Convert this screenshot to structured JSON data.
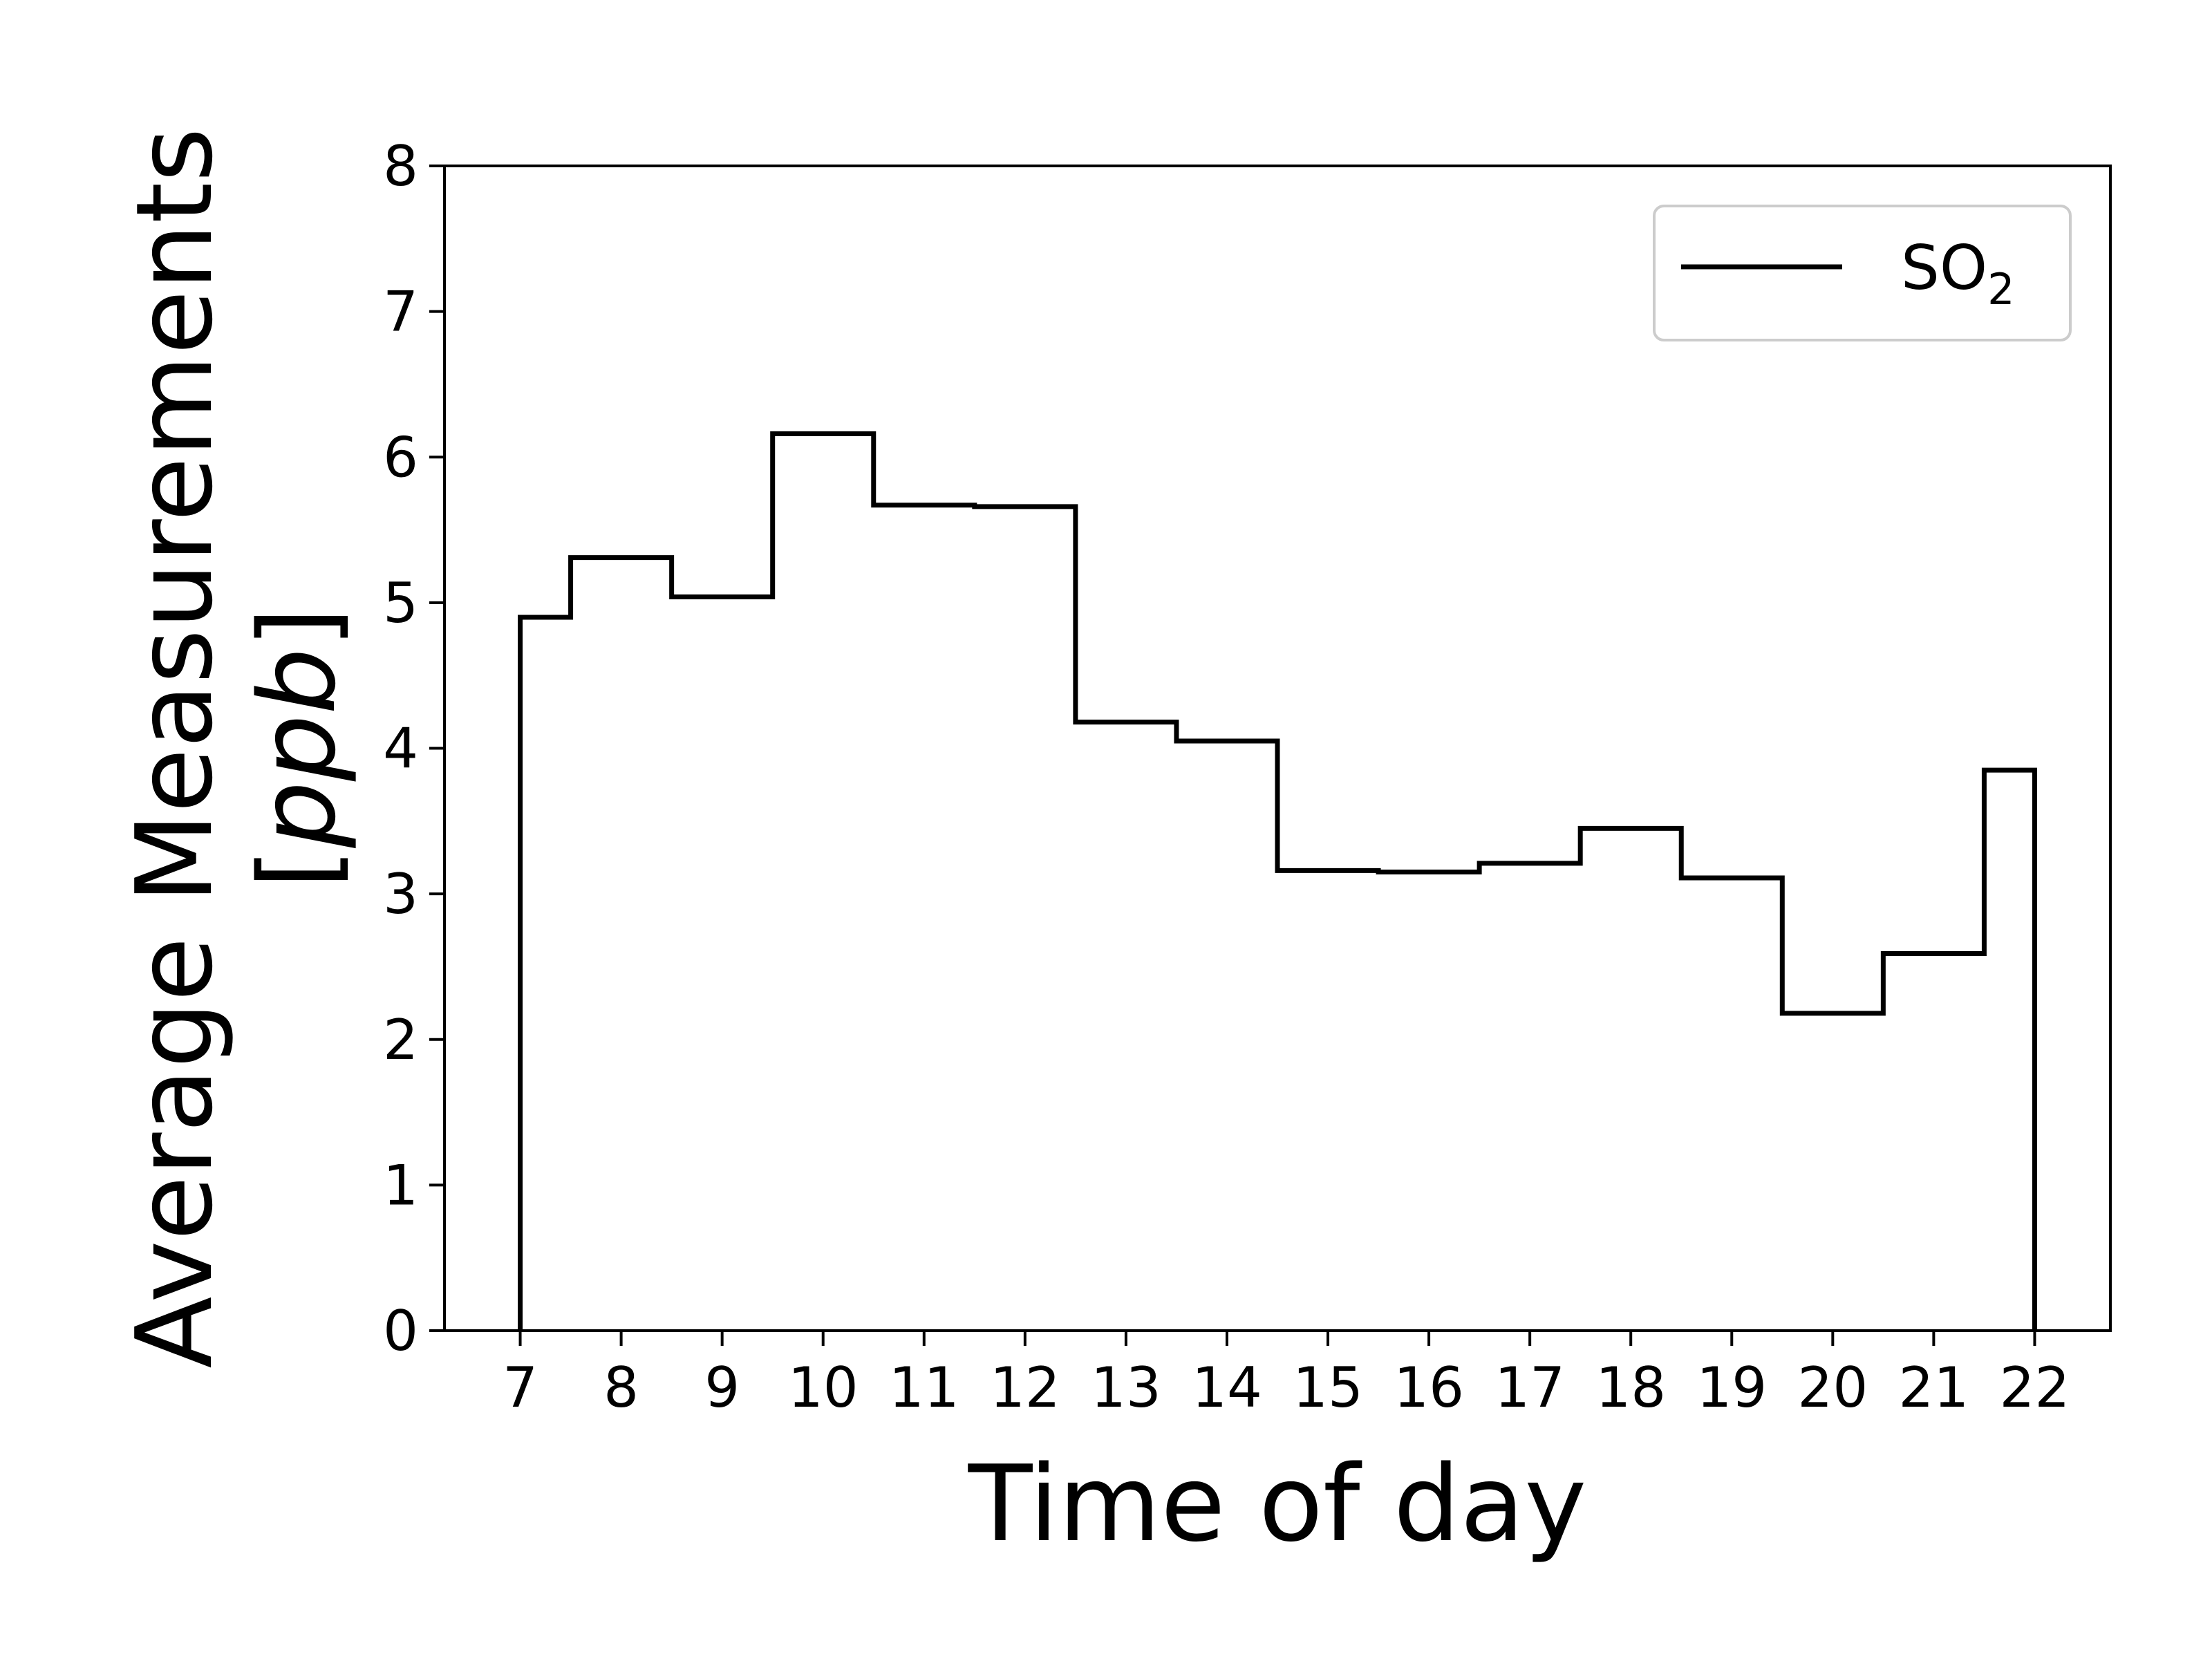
{
  "chart_data": {
    "type": "line",
    "drawstyle": "steps-mid",
    "xlabel": "Time of day",
    "ylabel_line1": "Average Measurements",
    "ylabel_line2_prefix": "[",
    "ylabel_line2_italic": "ppb",
    "ylabel_line2_suffix": "]",
    "xlim": [
      6.25,
      22.75
    ],
    "ylim": [
      0,
      8
    ],
    "xticks": [
      7,
      8,
      9,
      10,
      11,
      12,
      13,
      14,
      15,
      16,
      17,
      18,
      19,
      20,
      21,
      22
    ],
    "yticks": [
      0,
      1,
      2,
      3,
      4,
      5,
      6,
      7,
      8
    ],
    "grid": false,
    "legend_position": "top-right",
    "series": [
      {
        "name": "SO",
        "name_subscript": "2",
        "color": "#000000",
        "x": [
          7,
          8,
          9,
          10,
          11,
          12,
          13,
          14,
          15,
          16,
          17,
          18,
          19,
          20,
          21,
          22
        ],
        "values": [
          4.9,
          5.31,
          5.04,
          6.16,
          5.67,
          5.66,
          4.18,
          4.05,
          3.16,
          3.15,
          3.21,
          3.45,
          3.11,
          2.18,
          2.59,
          3.85
        ]
      }
    ]
  }
}
